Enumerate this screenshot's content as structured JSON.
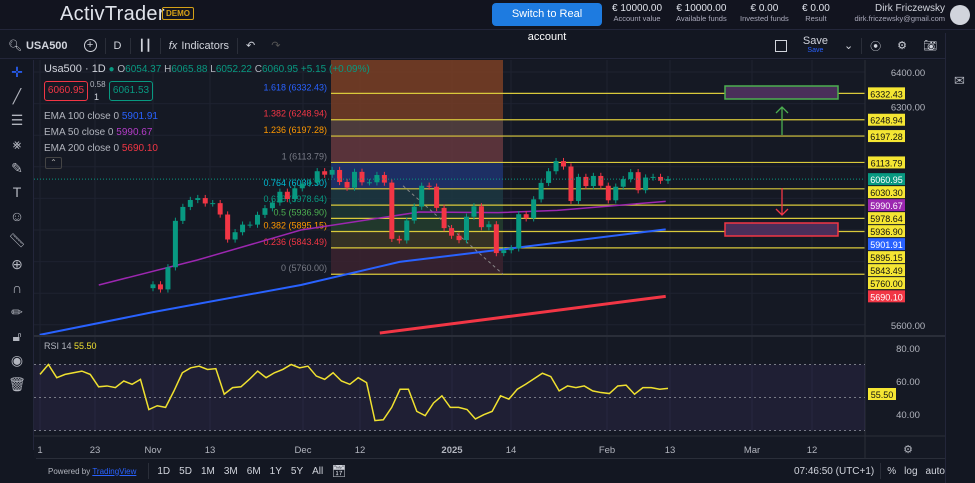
{
  "header": {
    "logo": "ActivTrader",
    "badge": "DEMO",
    "cta": "Switch to Real account",
    "stats": [
      {
        "value": "€ 10000.00",
        "label": "Account value"
      },
      {
        "value": "€ 10000.00",
        "label": "Available funds"
      },
      {
        "value": "€ 0.00",
        "label": "Invested funds"
      },
      {
        "value": "€ 0.00",
        "label": "Result"
      }
    ],
    "user_name": "Dirk Friczewsky",
    "user_email": "dirk.friczewsky@gmail.com"
  },
  "toolbar": {
    "symbol": "USA500",
    "interval": "D",
    "indicators": "Indicators",
    "save": "Save",
    "save_sub": "Save"
  },
  "legend": {
    "title": "Usa500 · 1D",
    "o": "6054.37",
    "h": "6065.88",
    "l": "6052.22",
    "c": "6060.95",
    "change": "+5.15 (+0.09%)",
    "bid": "6060.95",
    "spread": "0.58",
    "qty": "1",
    "ask": "6061.53",
    "ema": [
      {
        "label": "EMA 100 close 0",
        "value": "5901.91",
        "color": "#2962ff"
      },
      {
        "label": "EMA 50 close 0",
        "value": "5990.67",
        "color": "#9c27b0"
      },
      {
        "label": "EMA 200 close 0",
        "value": "5690.10",
        "color": "#f23645"
      }
    ]
  },
  "colors": {
    "up": "#089981",
    "down": "#f23645",
    "fib_line": "#d9c93b",
    "ema50": "#9c27b0",
    "ema100": "#2962ff",
    "ema200": "#f23645",
    "rsi": "#f0e130"
  },
  "fib": [
    {
      "ratio": "1.618",
      "price": 6332.43,
      "label": "1.618 (6332.43)",
      "color": "#2962ff",
      "band": "#7a3f25"
    },
    {
      "ratio": "1.382",
      "price": 6248.94,
      "label": "1.382 (6248.94)",
      "color": "#f23645",
      "band": "#5a4442"
    },
    {
      "ratio": "1.236",
      "price": 6197.28,
      "label": "1.236 (6197.28)",
      "color": "#ff9800",
      "band": "#6a3a40"
    },
    {
      "ratio": "1",
      "price": 6113.79,
      "label": "1 (6113.79)",
      "color": "#787b86",
      "band": "#1f3474"
    },
    {
      "ratio": "0.764",
      "price": 6030.3,
      "label": "0.764 (6030.30)",
      "color": "#00bcd4",
      "band": "#1d3a44"
    },
    {
      "ratio": "0.618",
      "price": 5978.64,
      "label": "0.618 (5978.64)",
      "color": "#089981",
      "band": "#1d3a36"
    },
    {
      "ratio": "0.5",
      "price": 5936.9,
      "label": "0.5 (5936.90)",
      "color": "#4caf50",
      "band": "#24402e"
    },
    {
      "ratio": "0.382",
      "price": 5895.15,
      "label": "0.382 (5895.15)",
      "color": "#ff9800",
      "band": "#3d3826"
    },
    {
      "ratio": "0.236",
      "price": 5843.49,
      "label": "0.236 (5843.49)",
      "color": "#f23645",
      "band": "#3d2330"
    },
    {
      "ratio": "0",
      "price": 5760.0,
      "label": "0 (5760.00)",
      "color": "#787b86",
      "band": null
    }
  ],
  "price_axis": {
    "ticks": [
      "6400.00",
      "6300.00",
      "5600.00"
    ],
    "tick_values": [
      6400,
      6300,
      5600
    ],
    "badges": [
      {
        "text": "6332.43",
        "v": 6332.43,
        "bg": "#f5e633",
        "fg": "#111"
      },
      {
        "text": "6248.94",
        "v": 6248.94,
        "bg": "#f5e633",
        "fg": "#111"
      },
      {
        "text": "6197.28",
        "v": 6197.28,
        "bg": "#f5e633",
        "fg": "#111"
      },
      {
        "text": "6113.79",
        "v": 6113.79,
        "bg": "#f5e633",
        "fg": "#111"
      },
      {
        "text": "6060.95",
        "v": 6060.95,
        "bg": "#089981",
        "fg": "#fff"
      },
      {
        "text": "6030.30",
        "v": 6030.3,
        "bg": "#f5e633",
        "fg": "#111"
      },
      {
        "text": "5990.67",
        "v": 5990.67,
        "bg": "#9c27b0",
        "fg": "#fff"
      },
      {
        "text": "5978.64",
        "v": 5978.64,
        "bg": "#f5e633",
        "fg": "#111"
      },
      {
        "text": "5936.90",
        "v": 5936.9,
        "bg": "#f5e633",
        "fg": "#111"
      },
      {
        "text": "5901.91",
        "v": 5901.91,
        "bg": "#2962ff",
        "fg": "#fff"
      },
      {
        "text": "5895.15",
        "v": 5895.15,
        "bg": "#f5e633",
        "fg": "#111"
      },
      {
        "text": "5843.49",
        "v": 5843.49,
        "bg": "#f5e633",
        "fg": "#111"
      },
      {
        "text": "5760.00",
        "v": 5760.0,
        "bg": "#f5e633",
        "fg": "#111"
      },
      {
        "text": "5690.10",
        "v": 5690.1,
        "bg": "#f23645",
        "fg": "#fff"
      }
    ]
  },
  "candles": [
    [
      "2024-11-01",
      5728
    ],
    [
      "2024-11-04",
      5712
    ],
    [
      "2024-11-05",
      5782
    ],
    [
      "2024-11-06",
      5929
    ],
    [
      "2024-11-07",
      5973
    ],
    [
      "2024-11-08",
      5995
    ],
    [
      "2024-11-11",
      6001
    ],
    [
      "2024-11-12",
      5984
    ],
    [
      "2024-11-13",
      5985
    ],
    [
      "2024-11-14",
      5949
    ],
    [
      "2024-11-15",
      5870
    ],
    [
      "2024-11-18",
      5893
    ],
    [
      "2024-11-19",
      5917
    ],
    [
      "2024-11-20",
      5917
    ],
    [
      "2024-11-21",
      5948
    ],
    [
      "2024-11-22",
      5969
    ],
    [
      "2024-11-25",
      5987
    ],
    [
      "2024-11-26",
      6021
    ],
    [
      "2024-11-27",
      5998
    ],
    [
      "2024-11-29",
      6032
    ],
    [
      "2024-12-02",
      6047
    ],
    [
      "2024-12-03",
      6050
    ],
    [
      "2024-12-04",
      6086
    ],
    [
      "2024-12-05",
      6075
    ],
    [
      "2024-12-06",
      6090
    ],
    [
      "2024-12-09",
      6052
    ],
    [
      "2024-12-10",
      6034
    ],
    [
      "2024-12-11",
      6084
    ],
    [
      "2024-12-12",
      6051
    ],
    [
      "2024-12-13",
      6051
    ],
    [
      "2024-12-16",
      6074
    ],
    [
      "2024-12-17",
      6050
    ],
    [
      "2024-12-18",
      5872
    ],
    [
      "2024-12-19",
      5867
    ],
    [
      "2024-12-20",
      5930
    ],
    [
      "2024-12-23",
      5974
    ],
    [
      "2024-12-24",
      6040
    ],
    [
      "2024-12-26",
      6037
    ],
    [
      "2024-12-27",
      5970
    ],
    [
      "2024-12-30",
      5906
    ],
    [
      "2024-12-31",
      5882
    ],
    [
      "2025-01-02",
      5868
    ],
    [
      "2025-01-03",
      5942
    ],
    [
      "2025-01-06",
      5975
    ],
    [
      "2025-01-07",
      5909
    ],
    [
      "2025-01-08",
      5918
    ],
    [
      "2025-01-10",
      5827
    ],
    [
      "2025-01-13",
      5836
    ],
    [
      "2025-01-14",
      5842
    ],
    [
      "2025-01-15",
      5950
    ],
    [
      "2025-01-16",
      5937
    ],
    [
      "2025-01-17",
      5997
    ],
    [
      "2025-01-21",
      6049
    ],
    [
      "2025-01-22",
      6086
    ],
    [
      "2025-01-23",
      6118
    ],
    [
      "2025-01-24",
      6101
    ],
    [
      "2025-01-27",
      5992
    ],
    [
      "2025-01-28",
      6068
    ],
    [
      "2025-01-29",
      6039
    ],
    [
      "2025-01-30",
      6071
    ],
    [
      "2025-01-31",
      6040
    ],
    [
      "2025-02-03",
      5994
    ],
    [
      "2025-02-04",
      6037
    ],
    [
      "2025-02-05",
      6061
    ],
    [
      "2025-02-06",
      6083
    ],
    [
      "2025-02-07",
      6026
    ],
    [
      "2025-02-10",
      6066
    ],
    [
      "2025-02-11",
      6068
    ],
    [
      "2025-02-12",
      6056
    ],
    [
      "2025-02-13",
      6061
    ]
  ],
  "ema50": [
    [
      "2024-10-21",
      5726
    ],
    [
      "2024-11-10",
      5805
    ],
    [
      "2024-12-01",
      5900
    ],
    [
      "2024-12-25",
      5957
    ],
    [
      "2025-01-10",
      5955
    ],
    [
      "2025-01-22",
      5962
    ],
    [
      "2025-02-13",
      5990.67
    ]
  ],
  "ema100": [
    [
      "2024-10-09",
      5568
    ],
    [
      "2024-11-01",
      5640
    ],
    [
      "2024-12-01",
      5726
    ],
    [
      "2024-12-21",
      5799
    ],
    [
      "2025-01-10",
      5837
    ],
    [
      "2025-02-13",
      5901.91
    ]
  ],
  "ema200": [
    [
      "2024-12-17",
      5574
    ],
    [
      "2025-01-10",
      5622
    ],
    [
      "2025-02-13",
      5690.1
    ]
  ],
  "rsi": {
    "label": "RSI 14",
    "value": "55.50",
    "levels": [
      70,
      50,
      30
    ],
    "ticks": [
      "80.00",
      "60.00",
      "40.00"
    ],
    "values": [
      64,
      70,
      62,
      64,
      65,
      66,
      64,
      56.5,
      57,
      56,
      60,
      58,
      61,
      42.7,
      45,
      44,
      54,
      65,
      68,
      69,
      67,
      67.5,
      52,
      56,
      56.5,
      61,
      66,
      62,
      65,
      67,
      70,
      68,
      69,
      63,
      61,
      65,
      60,
      58,
      62,
      59,
      36,
      36.5,
      44,
      55,
      55,
      41.6,
      39,
      46.7,
      51,
      44,
      44,
      42.7,
      37,
      39.6,
      41.6,
      51,
      49,
      55,
      58,
      61.4,
      64.7,
      62.7,
      54,
      57,
      56,
      57,
      54,
      53,
      52.4,
      57,
      57.5,
      52,
      56,
      56,
      55,
      55.5
    ]
  },
  "time_axis": [
    "1",
    "23",
    "Nov",
    "13",
    "Dec",
    "12",
    "2025",
    "14",
    "Feb",
    "13",
    "Mar",
    "12"
  ],
  "bottom": {
    "powered": "Powered by",
    "brand": "TradingView",
    "ranges": [
      "1D",
      "5D",
      "1M",
      "3M",
      "6M",
      "1Y",
      "5Y",
      "All"
    ],
    "clock": "07:46:50 (UTC+1)",
    "pct": "%",
    "log": "log",
    "auto": "auto"
  }
}
